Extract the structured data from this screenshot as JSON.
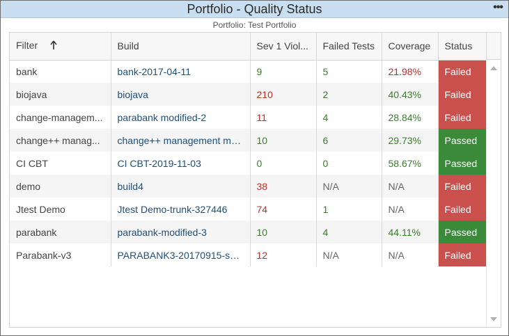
{
  "widget": {
    "title": "Portfolio - Quality Status",
    "menu_icon": "more-dots-icon",
    "menu_glyph": "•••",
    "subtitle": "Portfolio: Test Portfolio"
  },
  "table": {
    "columns": [
      {
        "key": "filter",
        "label": "Filter",
        "sorted": "ascending"
      },
      {
        "key": "build",
        "label": "Build"
      },
      {
        "key": "sev1",
        "label": "Sev 1 Viol..."
      },
      {
        "key": "failed_tests",
        "label": "Failed Tests"
      },
      {
        "key": "coverage",
        "label": "Coverage"
      },
      {
        "key": "status",
        "label": "Status"
      }
    ],
    "rows": [
      {
        "filter": "bank",
        "build": "bank-2017-04-11",
        "sev1": "9",
        "failed_tests": "5",
        "coverage": "21.98%",
        "status": "Failed"
      },
      {
        "filter": "biojava",
        "build": "biojava",
        "sev1": "210",
        "failed_tests": "2",
        "coverage": "40.43%",
        "status": "Failed"
      },
      {
        "filter": "change-managem...",
        "build": "parabank modified-2",
        "sev1": "11",
        "failed_tests": "4",
        "coverage": "28.84%",
        "status": "Failed"
      },
      {
        "filter": "change++ manag...",
        "build": "change++ management mo...",
        "sev1": "10",
        "failed_tests": "6",
        "coverage": "29.73%",
        "status": "Passed"
      },
      {
        "filter": "CI CBT",
        "build": "CI CBT-2019-11-03",
        "sev1": "0",
        "failed_tests": "0",
        "coverage": "58.67%",
        "status": "Passed"
      },
      {
        "filter": "demo",
        "build": "build4",
        "sev1": "38",
        "failed_tests": "N/A",
        "coverage": "N/A",
        "status": "Failed"
      },
      {
        "filter": "Jtest Demo",
        "build": "Jtest Demo-trunk-327446",
        "sev1": "74",
        "failed_tests": "1",
        "coverage": "N/A",
        "status": "Failed"
      },
      {
        "filter": "parabank",
        "build": "parabank-modified-3",
        "sev1": "10",
        "failed_tests": "4",
        "coverage": "44.11%",
        "status": "Passed"
      },
      {
        "filter": "Parabank-v3",
        "build": "PARABANK3-20170915-se...",
        "sev1": "12",
        "failed_tests": "N/A",
        "coverage": "N/A",
        "status": "Failed"
      }
    ]
  },
  "colors": {
    "title_bg": "#c9def0",
    "failed": "#c9504c",
    "passed": "#3a8a3a",
    "link": "#1f4e79",
    "red_text": "#b7312c",
    "green_text": "#3a7d2c"
  }
}
